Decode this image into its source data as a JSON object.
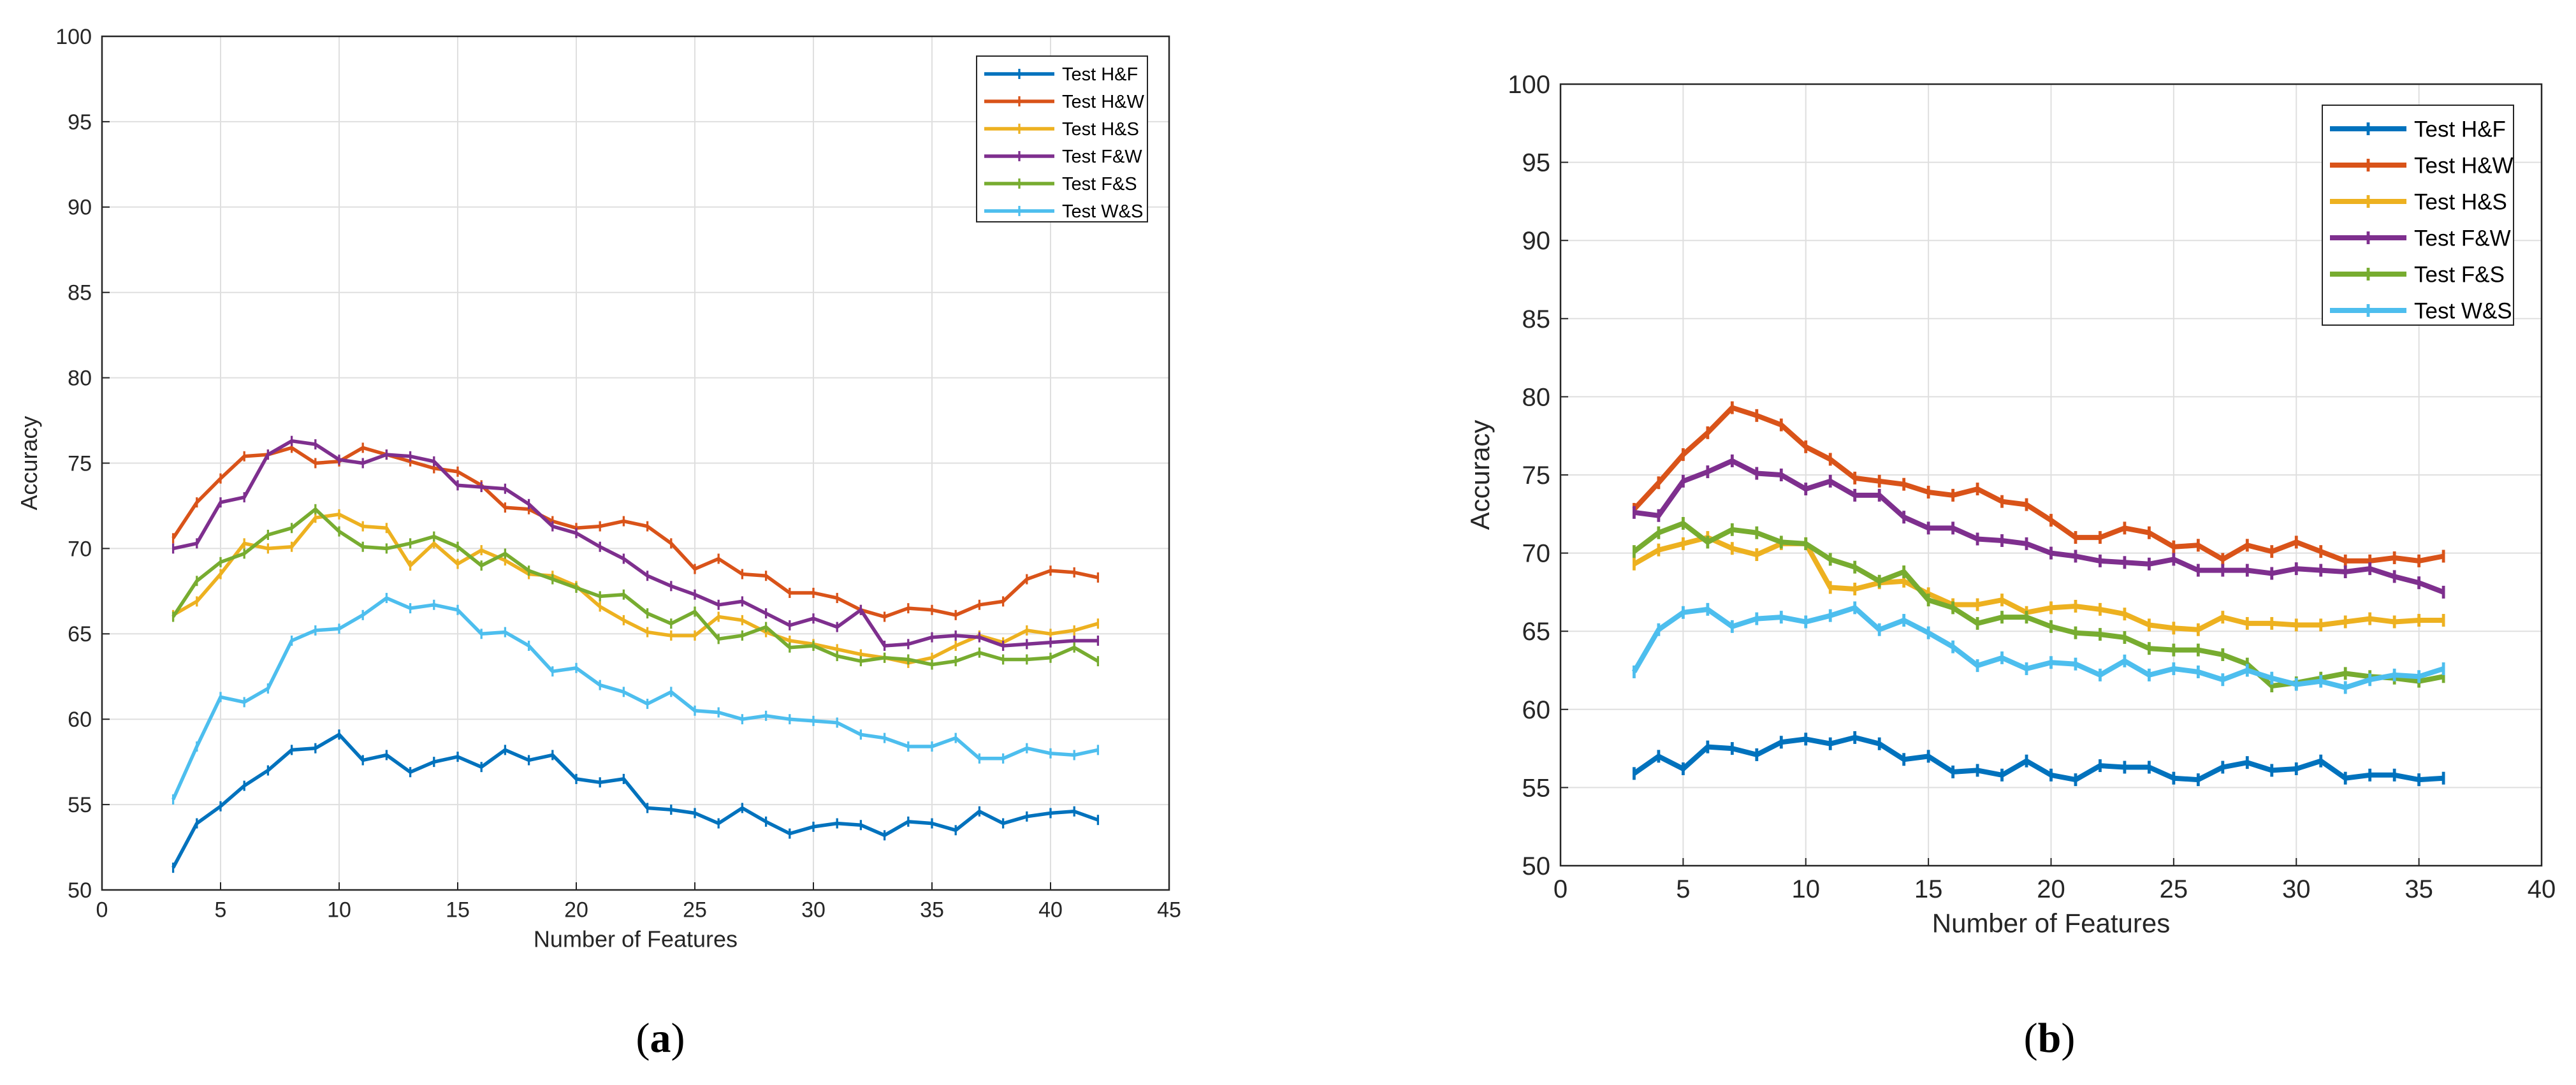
{
  "figure": {
    "panel_labels": [
      "a",
      "b"
    ]
  },
  "chart_data": [
    {
      "type": "line",
      "panel": "a",
      "title": "",
      "xlabel": "Number of Features",
      "ylabel": "Accuracy",
      "xlim": [
        0,
        45
      ],
      "ylim": [
        50,
        100
      ],
      "xticks": [
        0,
        5,
        10,
        15,
        20,
        25,
        30,
        35,
        40,
        45
      ],
      "yticks": [
        50,
        55,
        60,
        65,
        70,
        75,
        80,
        85,
        90,
        95,
        100
      ],
      "grid": true,
      "legend_position": "top-right",
      "x": [
        3,
        4,
        5,
        6,
        7,
        8,
        9,
        10,
        11,
        12,
        13,
        14,
        15,
        16,
        17,
        18,
        19,
        20,
        21,
        22,
        23,
        24,
        25,
        26,
        27,
        28,
        29,
        30,
        31,
        32,
        33,
        34,
        35,
        36,
        37,
        38,
        39,
        40,
        41,
        42
      ],
      "series": [
        {
          "name": "Test H&F",
          "color": "#0072BD",
          "values": [
            51.3,
            53.9,
            54.9,
            56.1,
            57.0,
            58.2,
            58.3,
            59.1,
            57.6,
            57.9,
            56.9,
            57.5,
            57.8,
            57.2,
            58.2,
            57.6,
            57.9,
            56.5,
            56.3,
            56.5,
            54.8,
            54.7,
            54.5,
            53.9,
            54.8,
            54.0,
            53.3,
            53.7,
            53.9,
            53.8,
            53.2,
            54.0,
            53.9,
            53.5,
            54.6,
            53.9,
            54.3,
            54.5,
            54.6,
            54.1
          ]
        },
        {
          "name": "Test H&W",
          "color": "#D95319",
          "values": [
            70.6,
            72.7,
            74.1,
            75.4,
            75.5,
            75.9,
            75.0,
            75.1,
            75.9,
            75.5,
            75.1,
            74.7,
            74.5,
            73.7,
            72.4,
            72.3,
            71.6,
            71.2,
            71.3,
            71.6,
            71.3,
            70.3,
            68.8,
            69.4,
            68.5,
            68.4,
            67.4,
            67.4,
            67.1,
            66.4,
            66.0,
            66.5,
            66.4,
            66.1,
            66.7,
            66.9,
            68.2,
            68.7,
            68.6,
            68.3
          ]
        },
        {
          "name": "Test H&S",
          "color": "#EDB120",
          "values": [
            66.1,
            66.9,
            68.5,
            70.3,
            70.0,
            70.1,
            71.8,
            72.0,
            71.3,
            71.2,
            69.0,
            70.3,
            69.1,
            69.9,
            69.3,
            68.5,
            68.4,
            67.8,
            66.6,
            65.8,
            65.1,
            64.9,
            64.9,
            66.0,
            65.8,
            65.1,
            64.6,
            64.4,
            64.1,
            63.8,
            63.6,
            63.3,
            63.6,
            64.3,
            64.9,
            64.5,
            65.2,
            65.0,
            65.2,
            65.6
          ]
        },
        {
          "name": "Test F&W",
          "color": "#7E2F8E",
          "values": [
            70.0,
            70.3,
            72.7,
            73.0,
            75.5,
            76.3,
            76.1,
            75.2,
            75.0,
            75.5,
            75.4,
            75.1,
            73.7,
            73.6,
            73.5,
            72.6,
            71.3,
            70.9,
            70.1,
            69.4,
            68.4,
            67.8,
            67.3,
            66.7,
            66.9,
            66.2,
            65.5,
            65.9,
            65.4,
            66.4,
            64.3,
            64.4,
            64.8,
            64.9,
            64.8,
            64.3,
            64.4,
            64.5,
            64.6,
            64.6
          ]
        },
        {
          "name": "Test F&S",
          "color": "#77AC30",
          "values": [
            66.0,
            68.1,
            69.2,
            69.7,
            70.8,
            71.2,
            72.3,
            71.0,
            70.1,
            70.0,
            70.3,
            70.7,
            70.1,
            69.0,
            69.7,
            68.7,
            68.2,
            67.7,
            67.2,
            67.3,
            66.2,
            65.6,
            66.3,
            64.7,
            64.9,
            65.4,
            64.2,
            64.3,
            63.7,
            63.4,
            63.6,
            63.5,
            63.2,
            63.4,
            63.9,
            63.5,
            63.5,
            63.6,
            64.2,
            63.4
          ]
        },
        {
          "name": "Test W&S",
          "color": "#4DBEEE",
          "values": [
            55.3,
            58.4,
            61.3,
            61.0,
            61.8,
            64.6,
            65.2,
            65.3,
            66.1,
            67.1,
            66.5,
            66.7,
            66.4,
            65.0,
            65.1,
            64.3,
            62.8,
            63.0,
            62.0,
            61.6,
            60.9,
            61.6,
            60.5,
            60.4,
            60.0,
            60.2,
            60.0,
            59.9,
            59.8,
            59.1,
            58.9,
            58.4,
            58.4,
            58.9,
            57.7,
            57.7,
            58.3,
            58.0,
            57.9,
            58.2
          ]
        }
      ]
    },
    {
      "type": "line",
      "panel": "b",
      "title": "",
      "xlabel": "Number of Features",
      "ylabel": "Accuracy",
      "xlim": [
        0,
        40
      ],
      "ylim": [
        50,
        100
      ],
      "xticks": [
        0,
        5,
        10,
        15,
        20,
        25,
        30,
        35,
        40
      ],
      "yticks": [
        50,
        55,
        60,
        65,
        70,
        75,
        80,
        85,
        90,
        95,
        100
      ],
      "grid": true,
      "legend_position": "top-right",
      "x": [
        3,
        4,
        5,
        6,
        7,
        8,
        9,
        10,
        11,
        12,
        13,
        14,
        15,
        16,
        17,
        18,
        19,
        20,
        21,
        22,
        23,
        24,
        25,
        26,
        27,
        28,
        29,
        30,
        31,
        32,
        33,
        34,
        35,
        36
      ],
      "series": [
        {
          "name": "Test H&F",
          "color": "#0072BD",
          "values": [
            55.9,
            57.0,
            56.2,
            57.6,
            57.5,
            57.1,
            57.9,
            58.1,
            57.8,
            58.2,
            57.8,
            56.8,
            57.0,
            56.0,
            56.1,
            55.8,
            56.7,
            55.8,
            55.5,
            56.4,
            56.3,
            56.3,
            55.6,
            55.5,
            56.3,
            56.6,
            56.1,
            56.2,
            56.7,
            55.6,
            55.8,
            55.8,
            55.5,
            55.6
          ]
        },
        {
          "name": "Test H&W",
          "color": "#D95319",
          "values": [
            72.8,
            74.5,
            76.3,
            77.7,
            79.3,
            78.8,
            78.2,
            76.8,
            76.0,
            74.8,
            74.6,
            74.4,
            73.9,
            73.7,
            74.1,
            73.3,
            73.1,
            72.1,
            71.0,
            71.0,
            71.6,
            71.3,
            70.4,
            70.5,
            69.6,
            70.5,
            70.1,
            70.7,
            70.1,
            69.5,
            69.5,
            69.7,
            69.5,
            69.8
          ]
        },
        {
          "name": "Test H&S",
          "color": "#EDB120",
          "values": [
            69.3,
            70.2,
            70.6,
            71.0,
            70.3,
            69.9,
            70.6,
            70.6,
            67.8,
            67.7,
            68.1,
            68.2,
            67.4,
            66.7,
            66.7,
            67.0,
            66.2,
            66.5,
            66.6,
            66.4,
            66.1,
            65.4,
            65.2,
            65.1,
            65.9,
            65.5,
            65.5,
            65.4,
            65.4,
            65.6,
            65.8,
            65.6,
            65.7,
            65.7
          ]
        },
        {
          "name": "Test F&W",
          "color": "#7E2F8E",
          "values": [
            72.6,
            72.4,
            74.6,
            75.2,
            75.9,
            75.1,
            75.0,
            74.1,
            74.6,
            73.7,
            73.7,
            72.3,
            71.6,
            71.6,
            70.9,
            70.8,
            70.6,
            70.0,
            69.8,
            69.5,
            69.4,
            69.3,
            69.6,
            68.9,
            68.9,
            68.9,
            68.7,
            69.0,
            68.9,
            68.8,
            69.0,
            68.5,
            68.1,
            67.5
          ]
        },
        {
          "name": "Test F&S",
          "color": "#77AC30",
          "values": [
            70.1,
            71.3,
            71.9,
            70.7,
            71.5,
            71.3,
            70.7,
            70.6,
            69.6,
            69.1,
            68.2,
            68.8,
            67.0,
            66.5,
            65.5,
            65.9,
            65.9,
            65.3,
            64.9,
            64.8,
            64.6,
            63.9,
            63.8,
            63.8,
            63.5,
            62.9,
            61.5,
            61.7,
            62.0,
            62.3,
            62.1,
            62.0,
            61.8,
            62.1
          ]
        },
        {
          "name": "Test W&S",
          "color": "#4DBEEE",
          "values": [
            62.4,
            65.1,
            66.2,
            66.4,
            65.3,
            65.8,
            65.9,
            65.6,
            66.0,
            66.5,
            65.1,
            65.7,
            64.9,
            64.0,
            62.8,
            63.3,
            62.6,
            63.0,
            62.9,
            62.2,
            63.1,
            62.2,
            62.6,
            62.4,
            61.9,
            62.5,
            62.0,
            61.6,
            61.8,
            61.4,
            61.9,
            62.2,
            62.1,
            62.6
          ]
        }
      ]
    }
  ]
}
